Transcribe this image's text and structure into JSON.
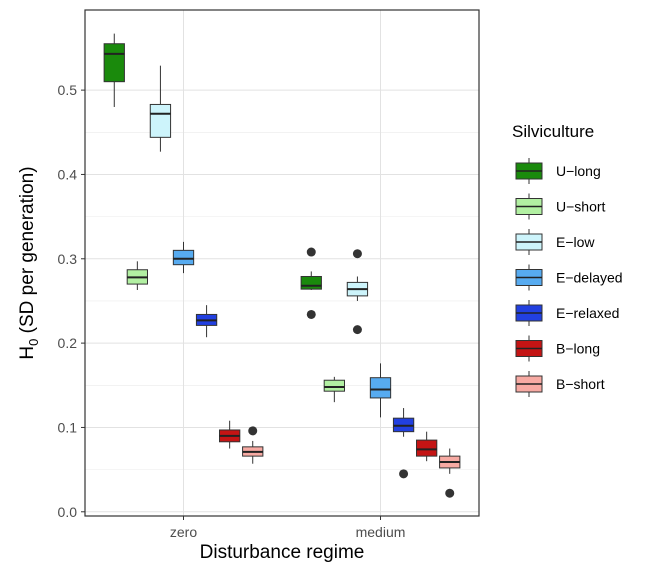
{
  "chart_data": {
    "type": "box",
    "xlabel": "Disturbance regime",
    "ylabel_main": "H",
    "ylabel_sub": "0",
    "ylabel_rest": " (SD per generation)",
    "categories": [
      "zero",
      "medium"
    ],
    "ylim": [
      -0.005,
      0.595
    ],
    "yticks": [
      0.0,
      0.1,
      0.2,
      0.3,
      0.4,
      0.5
    ],
    "ytick_labels": [
      "0.0",
      "0.1",
      "0.2",
      "0.3",
      "0.4",
      "0.5"
    ],
    "grid": true,
    "legend_title": "Silviculture",
    "legend_position": "right",
    "series": [
      {
        "name": "U−long",
        "color": "#1a8a0c",
        "boxes": [
          {
            "lower_whisker": 0.48,
            "q1": 0.51,
            "median": 0.543,
            "q3": 0.555,
            "upper_whisker": 0.567,
            "outliers": []
          },
          {
            "lower_whisker": 0.263,
            "q1": 0.264,
            "median": 0.268,
            "q3": 0.279,
            "upper_whisker": 0.285,
            "outliers": [
              0.308,
              0.234
            ]
          }
        ]
      },
      {
        "name": "U−short",
        "color": "#b2f0a2",
        "boxes": [
          {
            "lower_whisker": 0.263,
            "q1": 0.27,
            "median": 0.278,
            "q3": 0.287,
            "upper_whisker": 0.297,
            "outliers": []
          },
          {
            "lower_whisker": 0.13,
            "q1": 0.143,
            "median": 0.148,
            "q3": 0.156,
            "upper_whisker": 0.16,
            "outliers": []
          }
        ]
      },
      {
        "name": "E−low",
        "color": "#cdf4fb",
        "boxes": [
          {
            "lower_whisker": 0.427,
            "q1": 0.444,
            "median": 0.472,
            "q3": 0.483,
            "upper_whisker": 0.529,
            "outliers": []
          },
          {
            "lower_whisker": 0.25,
            "q1": 0.256,
            "median": 0.264,
            "q3": 0.272,
            "upper_whisker": 0.279,
            "outliers": [
              0.306,
              0.216
            ]
          }
        ]
      },
      {
        "name": "E−delayed",
        "color": "#57abf0",
        "boxes": [
          {
            "lower_whisker": 0.283,
            "q1": 0.293,
            "median": 0.3,
            "q3": 0.31,
            "upper_whisker": 0.32,
            "outliers": []
          },
          {
            "lower_whisker": 0.112,
            "q1": 0.135,
            "median": 0.145,
            "q3": 0.159,
            "upper_whisker": 0.176,
            "outliers": []
          }
        ]
      },
      {
        "name": "E−relaxed",
        "color": "#2240e0",
        "boxes": [
          {
            "lower_whisker": 0.207,
            "q1": 0.221,
            "median": 0.227,
            "q3": 0.234,
            "upper_whisker": 0.245,
            "outliers": []
          },
          {
            "lower_whisker": 0.089,
            "q1": 0.095,
            "median": 0.102,
            "q3": 0.111,
            "upper_whisker": 0.123,
            "outliers": [
              0.045
            ]
          }
        ]
      },
      {
        "name": "B−long",
        "color": "#c41414",
        "boxes": [
          {
            "lower_whisker": 0.075,
            "q1": 0.083,
            "median": 0.09,
            "q3": 0.097,
            "upper_whisker": 0.108,
            "outliers": []
          },
          {
            "lower_whisker": 0.06,
            "q1": 0.066,
            "median": 0.074,
            "q3": 0.085,
            "upper_whisker": 0.095,
            "outliers": []
          }
        ]
      },
      {
        "name": "B−short",
        "color": "#f7aaa3",
        "boxes": [
          {
            "lower_whisker": 0.057,
            "q1": 0.066,
            "median": 0.071,
            "q3": 0.077,
            "upper_whisker": 0.084,
            "outliers": [
              0.096
            ]
          },
          {
            "lower_whisker": 0.045,
            "q1": 0.052,
            "median": 0.059,
            "q3": 0.066,
            "upper_whisker": 0.075,
            "outliers": [
              0.022
            ]
          }
        ]
      }
    ]
  }
}
